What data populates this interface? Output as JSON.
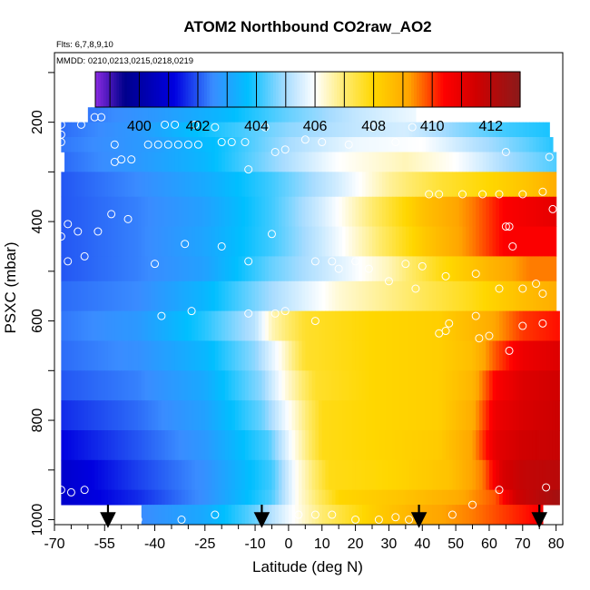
{
  "chart_data": {
    "type": "heatmap",
    "title": "ATOM2 Northbound CO2raw_AO2",
    "subtitle_flights": "Flts: 6,7,8,9,10",
    "subtitle_dates": "MMDD: 0210,0213,0215,0218,0219",
    "xlabel": "Latitude (deg N)",
    "ylabel": "PSXC (mbar)",
    "xlim": [
      -70,
      82
    ],
    "ylim": [
      1010,
      60
    ],
    "x_ticks": [
      -70,
      -55,
      -40,
      -25,
      -10,
      0,
      10,
      20,
      30,
      40,
      50,
      60,
      70,
      80
    ],
    "y_ticks": [
      200,
      400,
      600,
      800,
      1000
    ],
    "colorbar": {
      "range": [
        398.5,
        413
      ],
      "ticks": [
        400,
        402,
        404,
        406,
        408,
        410,
        412
      ],
      "stops": [
        {
          "v": 398.5,
          "c": "#8a2be2"
        },
        {
          "v": 399.5,
          "c": "#00008b"
        },
        {
          "v": 401.2,
          "c": "#0000e0"
        },
        {
          "v": 402.5,
          "c": "#3a8cff"
        },
        {
          "v": 403.7,
          "c": "#00bfff"
        },
        {
          "v": 405.0,
          "c": "#a8dcff"
        },
        {
          "v": 406.0,
          "c": "#ffffff"
        },
        {
          "v": 407.0,
          "c": "#ffeb70"
        },
        {
          "v": 408.0,
          "c": "#ffd700"
        },
        {
          "v": 409.2,
          "c": "#ffa500"
        },
        {
          "v": 410.4,
          "c": "#ff0000"
        },
        {
          "v": 411.5,
          "c": "#d00000"
        },
        {
          "v": 413.0,
          "c": "#8b1a1a"
        }
      ]
    },
    "arrows_lat": [
      -54,
      -8,
      39,
      75
    ],
    "co2_field": [
      {
        "p_top": 170,
        "p_bot": 200,
        "x0": -60,
        "x1": 38,
        "lat": [
          -60,
          -40,
          -20,
          0,
          20,
          38
        ],
        "v": [
          402.3,
          402.8,
          403.5,
          404.5,
          405.3,
          405.8
        ]
      },
      {
        "p_top": 200,
        "p_bot": 230,
        "x0": -68,
        "x1": 78,
        "lat": [
          -68,
          -45,
          -30,
          -15,
          0,
          20,
          35,
          50,
          65,
          78
        ],
        "v": [
          402.2,
          402.8,
          403.6,
          404.2,
          404.8,
          405.3,
          405.5,
          404.8,
          404.2,
          403.9
        ]
      },
      {
        "p_top": 230,
        "p_bot": 260,
        "x0": -68,
        "x1": 79,
        "lat": [
          -68,
          -40,
          -20,
          0,
          20,
          40,
          55,
          70,
          79
        ],
        "v": [
          402.3,
          402.9,
          403.8,
          405.0,
          405.8,
          406.0,
          405.2,
          404.5,
          404.0
        ]
      },
      {
        "p_top": 260,
        "p_bot": 300,
        "x0": -67,
        "x1": 80,
        "lat": [
          -67,
          -45,
          -25,
          -5,
          15,
          35,
          50,
          65,
          80
        ],
        "v": [
          402.2,
          402.8,
          403.5,
          404.8,
          406.0,
          406.5,
          406.0,
          405.0,
          404.3
        ]
      },
      {
        "p_top": 300,
        "p_bot": 350,
        "x0": -68,
        "x1": 80,
        "lat": [
          -68,
          -45,
          -25,
          -5,
          15,
          30,
          45,
          60,
          72,
          80
        ],
        "v": [
          402.0,
          402.5,
          403.2,
          404.2,
          405.5,
          406.7,
          407.5,
          408.0,
          408.5,
          409.0
        ]
      },
      {
        "p_top": 350,
        "p_bot": 410,
        "x0": -68,
        "x1": 80,
        "lat": [
          -68,
          -45,
          -25,
          -5,
          10,
          25,
          40,
          55,
          65,
          80
        ],
        "v": [
          402.0,
          402.4,
          403.0,
          404.2,
          405.5,
          407.0,
          408.5,
          409.5,
          410.5,
          411.0
        ]
      },
      {
        "p_top": 410,
        "p_bot": 470,
        "x0": -68,
        "x1": 80,
        "lat": [
          -68,
          -45,
          -25,
          -5,
          10,
          25,
          40,
          55,
          65,
          80
        ],
        "v": [
          402.0,
          402.4,
          403.1,
          404.2,
          405.4,
          406.8,
          408.3,
          409.5,
          410.5,
          410.5
        ]
      },
      {
        "p_top": 470,
        "p_bot": 520,
        "x0": -68,
        "x1": 80,
        "lat": [
          -68,
          -45,
          -25,
          -5,
          15,
          30,
          45,
          60,
          72,
          80
        ],
        "v": [
          402.0,
          402.4,
          403.0,
          404.5,
          405.6,
          406.5,
          407.8,
          408.8,
          409.5,
          409.5
        ]
      },
      {
        "p_top": 520,
        "p_bot": 580,
        "x0": -68,
        "x1": 80,
        "lat": [
          -68,
          -45,
          -25,
          -5,
          15,
          35,
          55,
          70,
          80
        ],
        "v": [
          402.2,
          402.5,
          403.5,
          405.0,
          406.3,
          407.0,
          407.8,
          408.6,
          409.0
        ]
      },
      {
        "p_top": 580,
        "p_bot": 640,
        "x0": -68,
        "x1": 81,
        "lat": [
          -68,
          -45,
          -25,
          -10,
          -5,
          5,
          25,
          45,
          60,
          70,
          81
        ],
        "v": [
          402.3,
          402.8,
          404.0,
          405.2,
          406.5,
          407.6,
          408.0,
          408.2,
          409.0,
          410.0,
          410.3
        ]
      },
      {
        "p_top": 640,
        "p_bot": 700,
        "x0": -68,
        "x1": 81,
        "lat": [
          -68,
          -45,
          -25,
          -10,
          -3,
          5,
          25,
          45,
          55,
          62,
          70,
          81
        ],
        "v": [
          402.2,
          402.6,
          403.5,
          404.8,
          406.0,
          407.6,
          408.0,
          408.2,
          408.6,
          409.8,
          410.8,
          411.2
        ]
      },
      {
        "p_top": 700,
        "p_bot": 760,
        "x0": -68,
        "x1": 81,
        "lat": [
          -68,
          -45,
          -25,
          -8,
          -1,
          8,
          25,
          45,
          55,
          62,
          70,
          81
        ],
        "v": [
          402.0,
          402.4,
          403.2,
          404.8,
          406.2,
          407.6,
          408.0,
          408.2,
          408.8,
          410.5,
          411.2,
          411.5
        ]
      },
      {
        "p_top": 760,
        "p_bot": 820,
        "x0": -68,
        "x1": 81,
        "lat": [
          -68,
          -45,
          -25,
          -8,
          0,
          10,
          25,
          45,
          55,
          62,
          70,
          81
        ],
        "v": [
          401.6,
          402.2,
          403.0,
          404.5,
          406.0,
          407.8,
          408.0,
          408.2,
          409.0,
          410.8,
          411.3,
          411.6
        ]
      },
      {
        "p_top": 820,
        "p_bot": 880,
        "x0": -68,
        "x1": 81,
        "lat": [
          -68,
          -45,
          -25,
          -6,
          1,
          10,
          25,
          45,
          55,
          62,
          70,
          81
        ],
        "v": [
          401.2,
          402.0,
          402.8,
          404.3,
          406.0,
          407.8,
          408.0,
          408.3,
          409.2,
          411.0,
          411.5,
          411.7
        ]
      },
      {
        "p_top": 880,
        "p_bot": 940,
        "x0": -68,
        "x1": 81,
        "lat": [
          -68,
          -45,
          -25,
          -5,
          2,
          12,
          30,
          48,
          58,
          64,
          70,
          81
        ],
        "v": [
          400.8,
          401.8,
          402.6,
          404.2,
          406.0,
          407.8,
          408.0,
          408.5,
          409.5,
          411.3,
          411.8,
          412.0
        ]
      },
      {
        "p_top": 940,
        "p_bot": 970,
        "x0": -68,
        "x1": 81,
        "lat": [
          -68,
          -45,
          -25,
          -5,
          3,
          15,
          35,
          50,
          62,
          68,
          81
        ],
        "v": [
          400.8,
          401.6,
          402.6,
          404.3,
          406.2,
          408.0,
          408.5,
          409.0,
          409.8,
          411.5,
          412.5
        ]
      },
      {
        "p_top": 970,
        "p_bot": 1010,
        "x0": -44,
        "x1": 76,
        "lat": [
          -44,
          -25,
          -10,
          0,
          10,
          25,
          40,
          55,
          65,
          76
        ],
        "v": [
          402.5,
          403.2,
          404.5,
          405.8,
          407.0,
          408.2,
          409.0,
          409.5,
          410.0,
          410.5
        ]
      }
    ],
    "sample_points": [
      [
        -56,
        190
      ],
      [
        -58,
        190
      ],
      [
        -68,
        205
      ],
      [
        -62,
        205
      ],
      [
        -37,
        205
      ],
      [
        -34,
        205
      ],
      [
        -28,
        205
      ],
      [
        -22,
        210
      ],
      [
        -7,
        210
      ],
      [
        25,
        210
      ],
      [
        37,
        210
      ],
      [
        -68,
        225
      ],
      [
        -68,
        240
      ],
      [
        -52,
        245
      ],
      [
        -42,
        245
      ],
      [
        -39,
        245
      ],
      [
        -36,
        245
      ],
      [
        -33,
        245
      ],
      [
        -30,
        245
      ],
      [
        -27,
        245
      ],
      [
        -20,
        240
      ],
      [
        -17,
        240
      ],
      [
        -13,
        240
      ],
      [
        -4,
        260
      ],
      [
        -1,
        255
      ],
      [
        5,
        235
      ],
      [
        10,
        240
      ],
      [
        18,
        245
      ],
      [
        32,
        240
      ],
      [
        65,
        260
      ],
      [
        78,
        270
      ],
      [
        -50,
        275
      ],
      [
        -47,
        275
      ],
      [
        -52,
        280
      ],
      [
        -12,
        295
      ],
      [
        42,
        345
      ],
      [
        45,
        345
      ],
      [
        52,
        345
      ],
      [
        58,
        345
      ],
      [
        63,
        345
      ],
      [
        70,
        345
      ],
      [
        -53,
        385
      ],
      [
        -48,
        395
      ],
      [
        -66,
        405
      ],
      [
        -63,
        420
      ],
      [
        -57,
        420
      ],
      [
        -68,
        430
      ],
      [
        -66,
        480
      ],
      [
        -61,
        470
      ],
      [
        -40,
        485
      ],
      [
        -31,
        445
      ],
      [
        -20,
        450
      ],
      [
        -12,
        480
      ],
      [
        -5,
        425
      ],
      [
        8,
        480
      ],
      [
        13,
        480
      ],
      [
        15,
        495
      ],
      [
        20,
        480
      ],
      [
        24,
        495
      ],
      [
        35,
        485
      ],
      [
        40,
        490
      ],
      [
        47,
        510
      ],
      [
        56,
        505
      ],
      [
        66,
        410
      ],
      [
        65,
        410
      ],
      [
        67,
        450
      ],
      [
        63,
        535
      ],
      [
        74,
        525
      ],
      [
        76,
        545
      ],
      [
        70,
        535
      ],
      [
        83,
        595
      ],
      [
        76,
        605
      ],
      [
        70,
        610
      ],
      [
        56,
        590
      ],
      [
        60,
        630
      ],
      [
        57,
        635
      ],
      [
        48,
        605
      ],
      [
        47,
        620
      ],
      [
        45,
        625
      ],
      [
        -1,
        580
      ],
      [
        -12,
        585
      ],
      [
        -4,
        585
      ],
      [
        8,
        600
      ],
      [
        -38,
        590
      ],
      [
        -29,
        580
      ],
      [
        -68,
        940
      ],
      [
        -65,
        945
      ],
      [
        -61,
        940
      ],
      [
        -45,
        1000
      ],
      [
        -32,
        1000
      ],
      [
        -22,
        990
      ],
      [
        -8,
        995
      ],
      [
        3,
        990
      ],
      [
        8,
        990
      ],
      [
        13,
        990
      ],
      [
        20,
        1000
      ],
      [
        27,
        1000
      ],
      [
        32,
        995
      ],
      [
        36,
        1000
      ],
      [
        49,
        990
      ],
      [
        55,
        970
      ],
      [
        63,
        940
      ],
      [
        78,
        995
      ],
      [
        77,
        935
      ],
      [
        38,
        535
      ],
      [
        30,
        520
      ],
      [
        76,
        340
      ],
      [
        79,
        375
      ],
      [
        82,
        280
      ],
      [
        66,
        660
      ]
    ]
  }
}
